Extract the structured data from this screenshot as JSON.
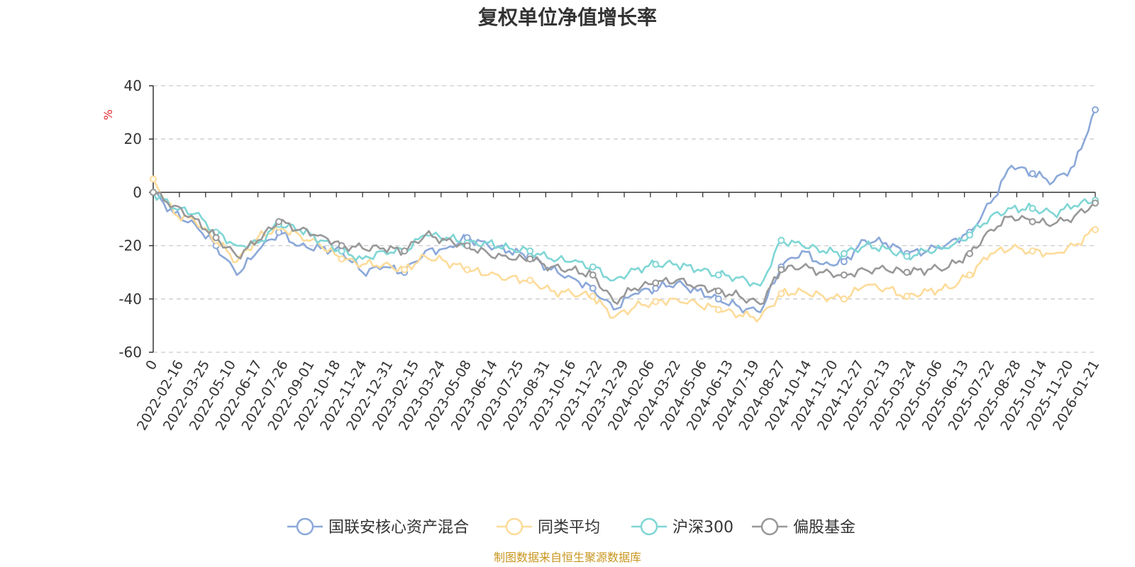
{
  "chart_data": {
    "type": "line",
    "title": "复权单位净值增长率",
    "ylabel": "%",
    "ylim": [
      -60,
      40
    ],
    "yticks": [
      40,
      20,
      0,
      -20,
      -40,
      -60
    ],
    "grid": true,
    "legend_position": "bottom",
    "x_tick_labels": [
      "0",
      "2022-02-16",
      "2022-03-25",
      "2022-05-10",
      "2022-06-17",
      "2022-07-26",
      "2022-09-01",
      "2022-10-18",
      "2022-11-24",
      "2022-12-31",
      "2023-02-15",
      "2023-03-24",
      "2023-05-08",
      "2023-06-14",
      "2023-07-25",
      "2023-08-31",
      "2023-10-16",
      "2023-11-22",
      "2023-12-29",
      "2024-02-06",
      "2024-03-22",
      "2024-05-06",
      "2024-06-13",
      "2024-07-19",
      "2024-08-27",
      "2024-10-14",
      "2024-11-20",
      "2024-12-27",
      "2025-02-13",
      "2025-03-24",
      "2025-05-06",
      "2025-06-13",
      "2025-07-22",
      "2025-08-28",
      "2025-10-14",
      "2025-11-20",
      "2026-01-21"
    ],
    "series": [
      {
        "name": "国联安核心资产混合",
        "color": "#8ba8d9",
        "values": [
          0,
          -8,
          -12,
          -20,
          -31,
          -22,
          -15,
          -20,
          -21,
          -22,
          -30,
          -28,
          -30,
          -22,
          -21,
          -17,
          -20,
          -22,
          -24,
          -29,
          -32,
          -36,
          -44,
          -38,
          -36,
          -34,
          -37,
          -40,
          -43,
          -45,
          -28,
          -22,
          -27,
          -26,
          -18,
          -19,
          -23,
          -22,
          -19,
          -15,
          -4,
          10,
          7,
          4,
          10,
          31
        ]
      },
      {
        "name": "同类平均",
        "color": "#fddb99",
        "values": [
          5,
          -8,
          -11,
          -18,
          -26,
          -17,
          -13,
          -16,
          -20,
          -25,
          -27,
          -27,
          -29,
          -24,
          -26,
          -29,
          -31,
          -32,
          -33,
          -37,
          -38,
          -39,
          -47,
          -43,
          -41,
          -40,
          -42,
          -44,
          -46,
          -47,
          -38,
          -37,
          -39,
          -40,
          -35,
          -36,
          -39,
          -37,
          -36,
          -31,
          -23,
          -21,
          -22,
          -23,
          -20,
          -14
        ]
      },
      {
        "name": "沪深300",
        "color": "#7fd6d5",
        "values": [
          0,
          -6,
          -8,
          -15,
          -20,
          -19,
          -12,
          -14,
          -18,
          -22,
          -25,
          -22,
          -22,
          -16,
          -17,
          -19,
          -19,
          -21,
          -22,
          -25,
          -26,
          -28,
          -33,
          -29,
          -27,
          -27,
          -29,
          -31,
          -32,
          -35,
          -18,
          -20,
          -22,
          -23,
          -20,
          -21,
          -24,
          -22,
          -21,
          -16,
          -9,
          -6,
          -6,
          -8,
          -5,
          -3
        ]
      },
      {
        "name": "偏股基金",
        "color": "#989898",
        "values": [
          0,
          -5,
          -10,
          -17,
          -24,
          -18,
          -11,
          -14,
          -16,
          -20,
          -21,
          -21,
          -22,
          -16,
          -18,
          -20,
          -23,
          -25,
          -25,
          -28,
          -29,
          -31,
          -41,
          -36,
          -34,
          -33,
          -35,
          -37,
          -39,
          -42,
          -29,
          -28,
          -30,
          -31,
          -29,
          -29,
          -30,
          -29,
          -28,
          -23,
          -14,
          -9,
          -11,
          -12,
          -9,
          -4
        ]
      }
    ]
  },
  "source_note": "制图数据来自恒生聚源数据库"
}
